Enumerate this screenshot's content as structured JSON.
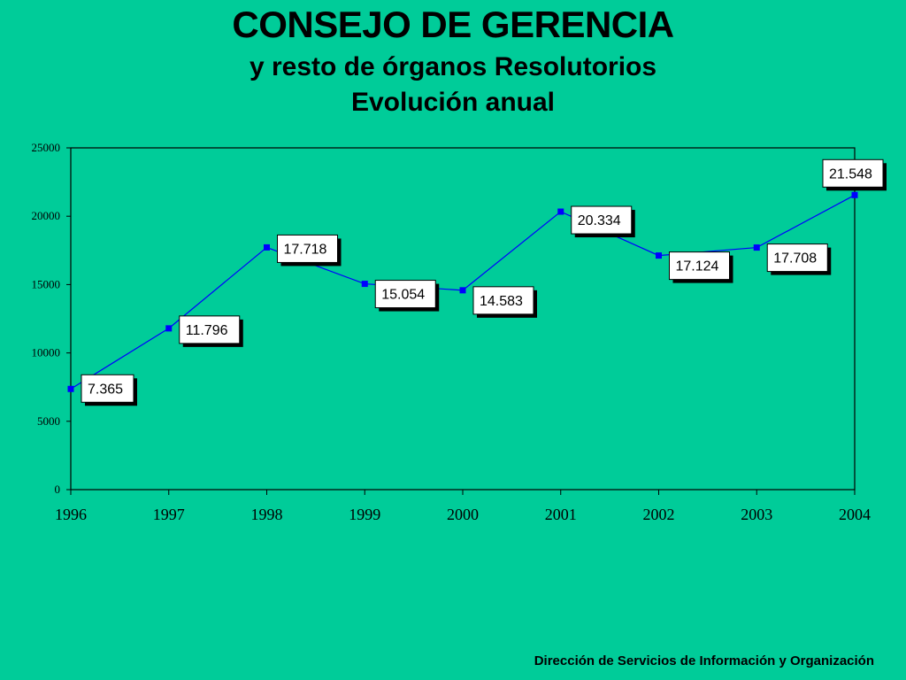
{
  "header": {
    "title": "CONSEJO DE GERENCIA",
    "subtitle1": "y resto de órganos Resolutorios",
    "subtitle2": "Evolución anual"
  },
  "footer": {
    "text": "Dirección de Servicios de  Información y Organización"
  },
  "colors": {
    "background": "#00CC99",
    "line": "#0000FF",
    "marker": "#0000FF",
    "label_box": "#FFFFFF"
  },
  "chart_data": {
    "type": "line",
    "x": [
      "1996",
      "1997",
      "1998",
      "1999",
      "2000",
      "2001",
      "2002",
      "2003",
      "2004"
    ],
    "series": [
      {
        "values": [
          7365,
          11796,
          17718,
          15054,
          14583,
          20334,
          17124,
          17708,
          21548
        ]
      }
    ],
    "data_labels": [
      "7.365",
      "11.796",
      "17.718",
      "15.054",
      "14.583",
      "20.334",
      "17.124",
      "17.708",
      "21.548"
    ],
    "yticks": [
      "0",
      "5000",
      "10000",
      "15000",
      "20000",
      "25000"
    ],
    "ylim": [
      0,
      25000
    ],
    "grid": false,
    "legend": "none"
  }
}
